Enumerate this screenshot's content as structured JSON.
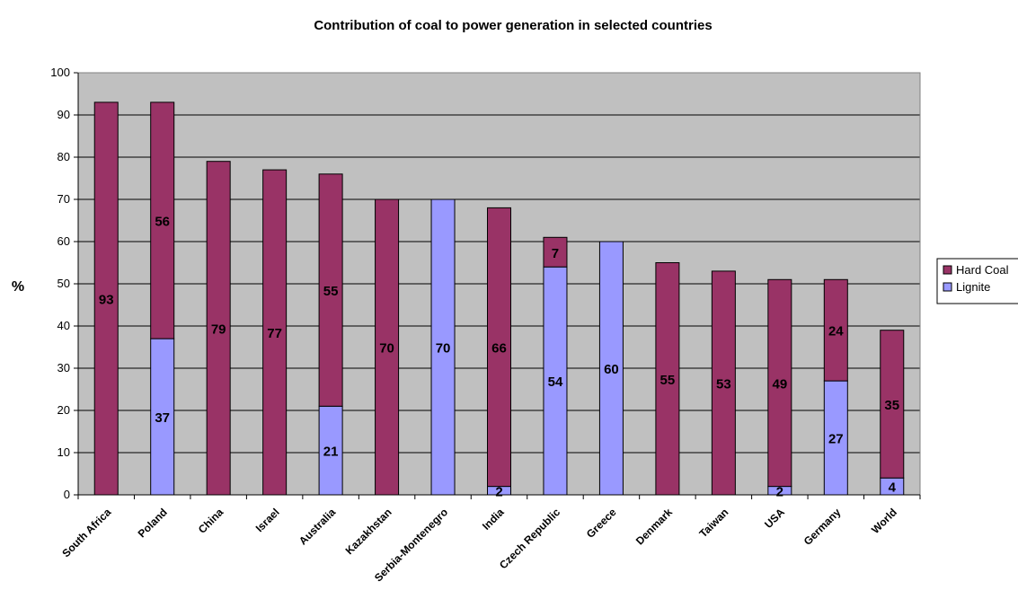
{
  "chart_data": {
    "type": "bar",
    "stacked": true,
    "title": "Contribution of coal to power generation in selected countries",
    "xlabel": "",
    "ylabel": "%",
    "ylim": [
      0,
      100
    ],
    "yticks": [
      0,
      10,
      20,
      30,
      40,
      50,
      60,
      70,
      80,
      90,
      100
    ],
    "grid": true,
    "legend_position": "right",
    "categories": [
      "South Africa",
      "Poland",
      "China",
      "Israel",
      "Australia",
      "Kazakhstan",
      "Serbia-Montenegro",
      "India",
      "Czech Republic",
      "Greece",
      "Denmark",
      "Taiwan",
      "USA",
      "Germany",
      "World"
    ],
    "series": [
      {
        "name": "Lignite",
        "color": "#9999ff",
        "values": [
          0,
          37,
          0,
          0,
          21,
          0,
          70,
          2,
          54,
          60,
          0,
          0,
          2,
          27,
          4
        ]
      },
      {
        "name": "Hard Coal",
        "color": "#993366",
        "values": [
          93,
          56,
          79,
          77,
          55,
          70,
          0,
          66,
          7,
          0,
          55,
          53,
          49,
          24,
          35
        ]
      }
    ],
    "legend": {
      "entries": [
        {
          "label": "Hard Coal",
          "color": "#993366"
        },
        {
          "label": "Lignite",
          "color": "#9999ff"
        }
      ]
    },
    "plot_background": "#c0c0c0"
  }
}
